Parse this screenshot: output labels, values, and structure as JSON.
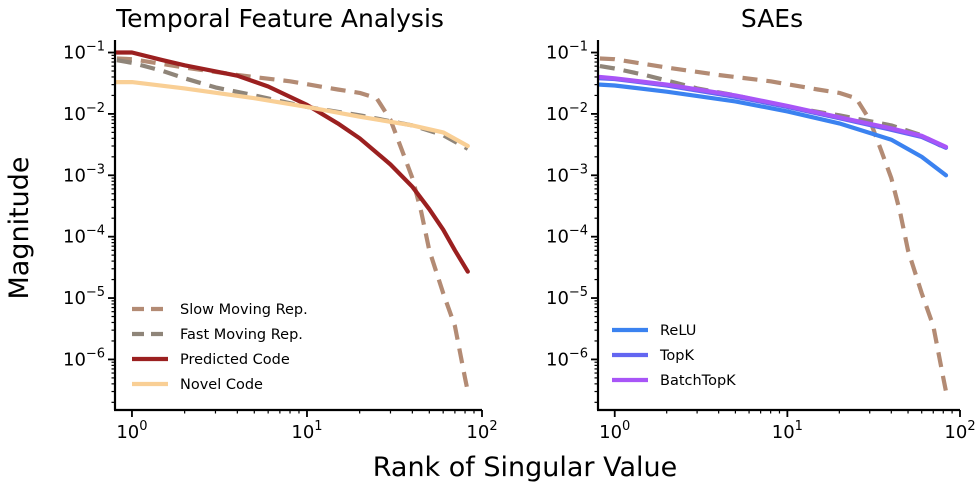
{
  "figure": {
    "shared_xlabel": "Rank of Singular Value",
    "shared_ylabel": "Magnitude"
  },
  "chart_data": [
    {
      "type": "line",
      "title": "Temporal Feature Analysis",
      "xscale": "log",
      "yscale": "log",
      "xlim": [
        0.8,
        100
      ],
      "ylim": [
        1.5e-07,
        0.16
      ],
      "xticks": [
        {
          "value": 1,
          "base": "10",
          "exp": "0"
        },
        {
          "value": 10,
          "base": "10",
          "exp": "1"
        },
        {
          "value": 100,
          "base": "10",
          "exp": "2"
        }
      ],
      "yticks": [
        {
          "value": 0.1,
          "base": "10",
          "exp": "−1"
        },
        {
          "value": 0.01,
          "base": "10",
          "exp": "−2"
        },
        {
          "value": 0.001,
          "base": "10",
          "exp": "−3"
        },
        {
          "value": 0.0001,
          "base": "10",
          "exp": "−4"
        },
        {
          "value": 1e-05,
          "base": "10",
          "exp": "−5"
        },
        {
          "value": 1e-06,
          "base": "10",
          "exp": "−6"
        }
      ],
      "legend_position": "lower-left",
      "series": [
        {
          "name": "Slow Moving Rep.",
          "color": "#b38b74",
          "dash": "dashed",
          "x": [
            0.82,
            1,
            2,
            4,
            8,
            15,
            20,
            25,
            30,
            35,
            40,
            45,
            50,
            60,
            70,
            80,
            83
          ],
          "y": [
            0.08,
            0.078,
            0.057,
            0.043,
            0.034,
            0.025,
            0.022,
            0.018,
            0.008,
            0.0025,
            0.0009,
            0.00025,
            6e-05,
            1.2e-05,
            3.5e-06,
            5e-07,
            3e-07
          ]
        },
        {
          "name": "Fast Moving Rep.",
          "color": "#8f8579",
          "dash": "dashed",
          "x": [
            0.82,
            1,
            1.5,
            2,
            3,
            5,
            10,
            20,
            40,
            60,
            83
          ],
          "y": [
            0.075,
            0.068,
            0.05,
            0.038,
            0.027,
            0.02,
            0.013,
            0.0095,
            0.0065,
            0.0045,
            0.0027
          ]
        },
        {
          "name": "Predicted Code",
          "color": "#9b2020",
          "dash": "solid",
          "x": [
            0.82,
            1,
            1.5,
            2,
            4,
            6,
            10,
            15,
            20,
            30,
            40,
            50,
            60,
            70,
            83
          ],
          "y": [
            0.1,
            0.1,
            0.075,
            0.062,
            0.042,
            0.028,
            0.014,
            0.007,
            0.004,
            0.0015,
            0.00065,
            0.00028,
            0.00013,
            6e-05,
            2.7e-05
          ]
        },
        {
          "name": "Novel Code",
          "color": "#f9cf95",
          "dash": "solid",
          "x": [
            0.82,
            1,
            2,
            5,
            10,
            20,
            40,
            60,
            83
          ],
          "y": [
            0.033,
            0.033,
            0.026,
            0.018,
            0.013,
            0.009,
            0.0065,
            0.005,
            0.003
          ]
        }
      ]
    },
    {
      "type": "line",
      "title": "SAEs",
      "xscale": "log",
      "yscale": "log",
      "xlim": [
        0.8,
        100
      ],
      "ylim": [
        1.5e-07,
        0.16
      ],
      "xticks": [
        {
          "value": 1,
          "base": "10",
          "exp": "0"
        },
        {
          "value": 10,
          "base": "10",
          "exp": "1"
        },
        {
          "value": 100,
          "base": "10",
          "exp": "2"
        }
      ],
      "yticks": [
        {
          "value": 0.1,
          "base": "10",
          "exp": "−1"
        },
        {
          "value": 0.01,
          "base": "10",
          "exp": "−2"
        },
        {
          "value": 0.001,
          "base": "10",
          "exp": "−3"
        },
        {
          "value": 0.0001,
          "base": "10",
          "exp": "−4"
        },
        {
          "value": 1e-05,
          "base": "10",
          "exp": "−5"
        },
        {
          "value": 1e-06,
          "base": "10",
          "exp": "−6"
        }
      ],
      "legend_position": "lower-left",
      "series": [
        {
          "name": "Slow Moving Rep.",
          "color": "#b38b74",
          "dash": "dashed",
          "in_legend": false,
          "x": [
            0.82,
            1,
            2,
            4,
            8,
            15,
            20,
            25,
            30,
            35,
            40,
            45,
            50,
            60,
            70,
            80,
            83
          ],
          "y": [
            0.08,
            0.078,
            0.057,
            0.043,
            0.034,
            0.025,
            0.022,
            0.018,
            0.008,
            0.0025,
            0.0009,
            0.00025,
            6e-05,
            1.2e-05,
            3.5e-06,
            5e-07,
            3e-07
          ]
        },
        {
          "name": "Fast Moving Rep.",
          "color": "#8f8579",
          "dash": "dashed",
          "in_legend": false,
          "x": [
            0.82,
            1,
            1.5,
            2,
            3,
            5,
            10,
            20,
            40,
            60,
            83
          ],
          "y": [
            0.06,
            0.055,
            0.043,
            0.035,
            0.026,
            0.02,
            0.013,
            0.0095,
            0.0065,
            0.0045,
            0.0027
          ]
        },
        {
          "name": "ReLU",
          "color": "#3b82f0",
          "dash": "solid",
          "x": [
            0.82,
            1,
            2,
            5,
            10,
            20,
            40,
            60,
            83
          ],
          "y": [
            0.03,
            0.029,
            0.023,
            0.016,
            0.011,
            0.007,
            0.0038,
            0.002,
            0.001
          ]
        },
        {
          "name": "TopK",
          "color": "#6366f1",
          "dash": "solid",
          "x": [
            0.82,
            1,
            2,
            5,
            10,
            20,
            40,
            60,
            83
          ],
          "y": [
            0.038,
            0.037,
            0.029,
            0.019,
            0.013,
            0.0085,
            0.0055,
            0.0042,
            0.0028
          ]
        },
        {
          "name": "BatchTopK",
          "color": "#a855f7",
          "dash": "solid",
          "x": [
            0.82,
            1,
            2,
            5,
            10,
            20,
            40,
            60,
            83
          ],
          "y": [
            0.04,
            0.038,
            0.03,
            0.02,
            0.0135,
            0.0088,
            0.0058,
            0.0044,
            0.0029
          ]
        }
      ]
    }
  ]
}
